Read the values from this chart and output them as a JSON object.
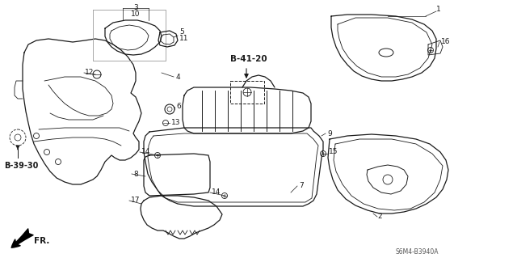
{
  "bg_color": "#ffffff",
  "line_color": "#1a1a1a",
  "diagram_code": "S6M4-B3940A",
  "ref_b4120": "B-41-20",
  "ref_b3930": "B-39-30",
  "fr_label": "FR.",
  "fig_w": 6.4,
  "fig_h": 3.19,
  "dpi": 100
}
